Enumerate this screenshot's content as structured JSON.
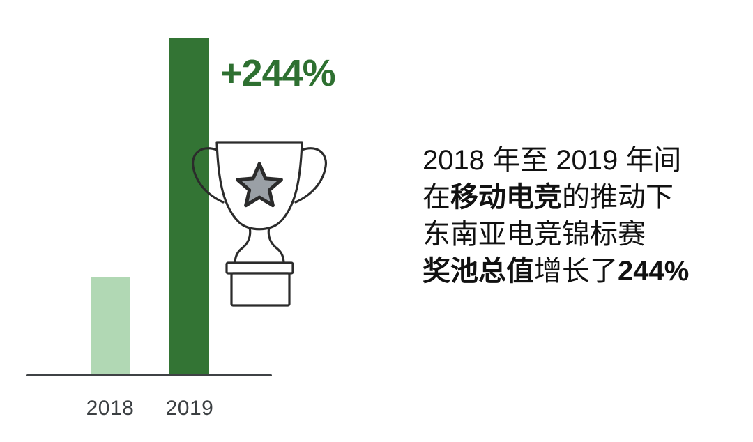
{
  "page": {
    "background": "#ffffff"
  },
  "chart_data": {
    "type": "bar",
    "categories": [
      "2018",
      "2019"
    ],
    "values": [
      100,
      344
    ],
    "value_note": "indexed values, 2018 = 100; 2019 bar is 3.44x the 2018 bar (+244% growth)",
    "annotation": "+244%",
    "annotation_color": "#2e7031",
    "bar_colors": [
      "#b1d8b4",
      "#337434"
    ],
    "axis_color": "#3f4245",
    "tick_label_color": "#3c4043",
    "title": "",
    "xlabel": "",
    "ylabel": "",
    "grid": false,
    "legend": false
  },
  "icon": {
    "name": "trophy-icon",
    "outline_color": "#2b2b2b",
    "star_fill": "#9aa0a6",
    "body_fill": "#ffffff"
  },
  "caption": {
    "text_color": "#111111",
    "lines": [
      [
        {
          "t": "2018 年至 2019 年间",
          "b": false
        }
      ],
      [
        {
          "t": "在",
          "b": false
        },
        {
          "t": "移动电竞",
          "b": true
        },
        {
          "t": "的推动下",
          "b": false
        }
      ],
      [
        {
          "t": "东南亚电竞锦标赛",
          "b": false
        }
      ],
      [
        {
          "t": "奖池总值",
          "b": true
        },
        {
          "t": "增长了",
          "b": false
        },
        {
          "t": "244%",
          "b": true
        }
      ]
    ]
  }
}
